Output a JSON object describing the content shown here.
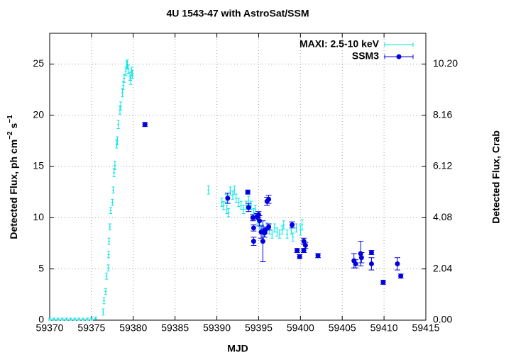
{
  "chart_data": {
    "type": "errorbar",
    "title": "4U 1543-47 with AstroSat/SSM",
    "xlabel": "MJD",
    "ylabel": {
      "text": "Detected Flux, ph cm",
      "sup1": "−2",
      "mid": " s",
      "sup2": "−1"
    },
    "y2label": "Detected Flux, Crab",
    "xlim": [
      59370,
      59415
    ],
    "xticks": [
      59370,
      59375,
      59380,
      59385,
      59390,
      59395,
      59400,
      59405,
      59410,
      59415
    ],
    "ylim": [
      0,
      28
    ],
    "yticks": [
      0,
      5,
      10,
      15,
      20,
      25
    ],
    "y2lim": [
      0,
      11.424
    ],
    "y2ticks": [
      {
        "value": 0,
        "label": "0.00"
      },
      2.04,
      4.08,
      6.12,
      8.16,
      {
        "value": 10.2,
        "label": "10.20"
      }
    ],
    "grid": true,
    "legend": "top-right",
    "series": [
      {
        "name": "MAXI: 2.5-10 keV",
        "color": "#00e5e5",
        "marker": "dot",
        "x": [
          59370,
          59370.5,
          59371,
          59371.5,
          59372,
          59372.5,
          59373,
          59373.5,
          59374,
          59374.5,
          59375,
          59375.5,
          59376.4,
          59376.5,
          59376.7,
          59376.8,
          59377.0,
          59377.05,
          59377.1,
          59377.2,
          59377.3,
          59377.5,
          59377.6,
          59377.7,
          59377.8,
          59378.0,
          59378.1,
          59378.2,
          59378.4,
          59378.5,
          59378.7,
          59378.8,
          59378.9,
          59379.1,
          59379.2,
          59379.3,
          59379.4,
          59379.6,
          59379.7,
          59379.8,
          59379.9,
          59389.0,
          59390.6,
          59390.8,
          59391.1,
          59391.2,
          59391.4,
          59391.6,
          59391.9,
          59392.1,
          59392.3,
          59392.6,
          59392.9,
          59393.2,
          59393.5,
          59393.8,
          59394.1,
          59394.4,
          59394.6,
          59394.9,
          59395.1,
          59395.5,
          59395.7,
          59396.0,
          59396.3,
          59396.6,
          59396.9,
          59397.2,
          59397.5,
          59397.8,
          59398.0,
          59398.4,
          59398.9,
          59399.1,
          59399.5,
          59400.0,
          59400.2
        ],
        "values": [
          0.1,
          0.1,
          0.1,
          0.1,
          0.1,
          0.1,
          0.1,
          0.1,
          0.1,
          0.1,
          0.1,
          0.2,
          0.8,
          1.9,
          2.8,
          4.3,
          5.1,
          6.4,
          7.7,
          9.1,
          10.7,
          11.5,
          12.7,
          14.4,
          15.1,
          17.2,
          17.5,
          19.1,
          20.5,
          20.9,
          22.2,
          22.9,
          23.6,
          24.3,
          24.9,
          25.0,
          24.5,
          23.8,
          23.4,
          24.3,
          24.0,
          12.7,
          11.5,
          11.2,
          11.9,
          10.8,
          10.5,
          12.6,
          12.2,
          12.7,
          11.9,
          11.5,
          11.2,
          10.8,
          11.2,
          11.7,
          11.2,
          10.5,
          10.8,
          9.8,
          9.3,
          8.9,
          8.6,
          9.1,
          8.8,
          8.4,
          9.0,
          8.6,
          8.4,
          8.8,
          9.3,
          8.4,
          8.8,
          8.1,
          9.0,
          8.8,
          9.3
        ],
        "errors": [
          0.1,
          0.1,
          0.1,
          0.1,
          0.1,
          0.1,
          0.1,
          0.1,
          0.1,
          0.1,
          0.1,
          0.1,
          0.3,
          0.3,
          0.3,
          0.3,
          0.3,
          0.3,
          0.3,
          0.3,
          0.3,
          0.3,
          0.3,
          0.4,
          0.4,
          0.4,
          0.4,
          0.4,
          0.4,
          0.4,
          0.4,
          0.4,
          0.4,
          0.4,
          0.4,
          0.4,
          0.4,
          0.4,
          0.4,
          0.4,
          0.4,
          0.4,
          0.4,
          0.4,
          0.4,
          0.4,
          0.4,
          0.4,
          0.4,
          0.4,
          0.4,
          0.4,
          0.4,
          0.4,
          0.4,
          0.4,
          0.4,
          0.4,
          0.4,
          0.4,
          0.4,
          0.4,
          0.4,
          0.4,
          0.4,
          0.4,
          0.4,
          0.4,
          0.4,
          0.4,
          0.4,
          0.4,
          0.4,
          0.4,
          0.4,
          0.5,
          0.5
        ]
      },
      {
        "name": "SSM3",
        "color": "#0000dd",
        "marker": "circle",
        "x": [
          59381.4,
          59391.3,
          59393.7,
          59393.8,
          59394.3,
          59394.4,
          59394.4,
          59394.8,
          59395.0,
          59395.1,
          59395.3,
          59395.5,
          59395.7,
          59395.8,
          59396.0,
          59396.2,
          59396.2,
          59399.0,
          59399.6,
          59399.9,
          59400.4,
          59400.4,
          59400.6,
          59402.1,
          59406.4,
          59406.6,
          59407.2,
          59407.3,
          59408.5,
          59408.5,
          59409.9,
          59411.6,
          59412.0
        ],
        "values": [
          19.1,
          11.9,
          12.5,
          11.0,
          10.0,
          9.0,
          7.7,
          10.1,
          10.3,
          9.7,
          8.6,
          7.7,
          8.5,
          8.8,
          11.6,
          11.8,
          9.1,
          9.3,
          6.8,
          6.2,
          6.8,
          7.7,
          7.3,
          6.3,
          5.8,
          5.5,
          6.5,
          6.1,
          6.6,
          5.5,
          3.7,
          5.5,
          4.3
        ],
        "errors": [
          0.2,
          0.5,
          0.2,
          0.4,
          0.3,
          0.3,
          0.4,
          0.3,
          0.3,
          0.5,
          0.6,
          2.0,
          0.4,
          0.3,
          0.4,
          0.4,
          0.3,
          0.3,
          0.2,
          0.2,
          0.2,
          0.3,
          0.3,
          0.2,
          0.7,
          0.4,
          1.2,
          0.5,
          0.2,
          0.6,
          0.2,
          0.6,
          0.2
        ]
      }
    ]
  }
}
